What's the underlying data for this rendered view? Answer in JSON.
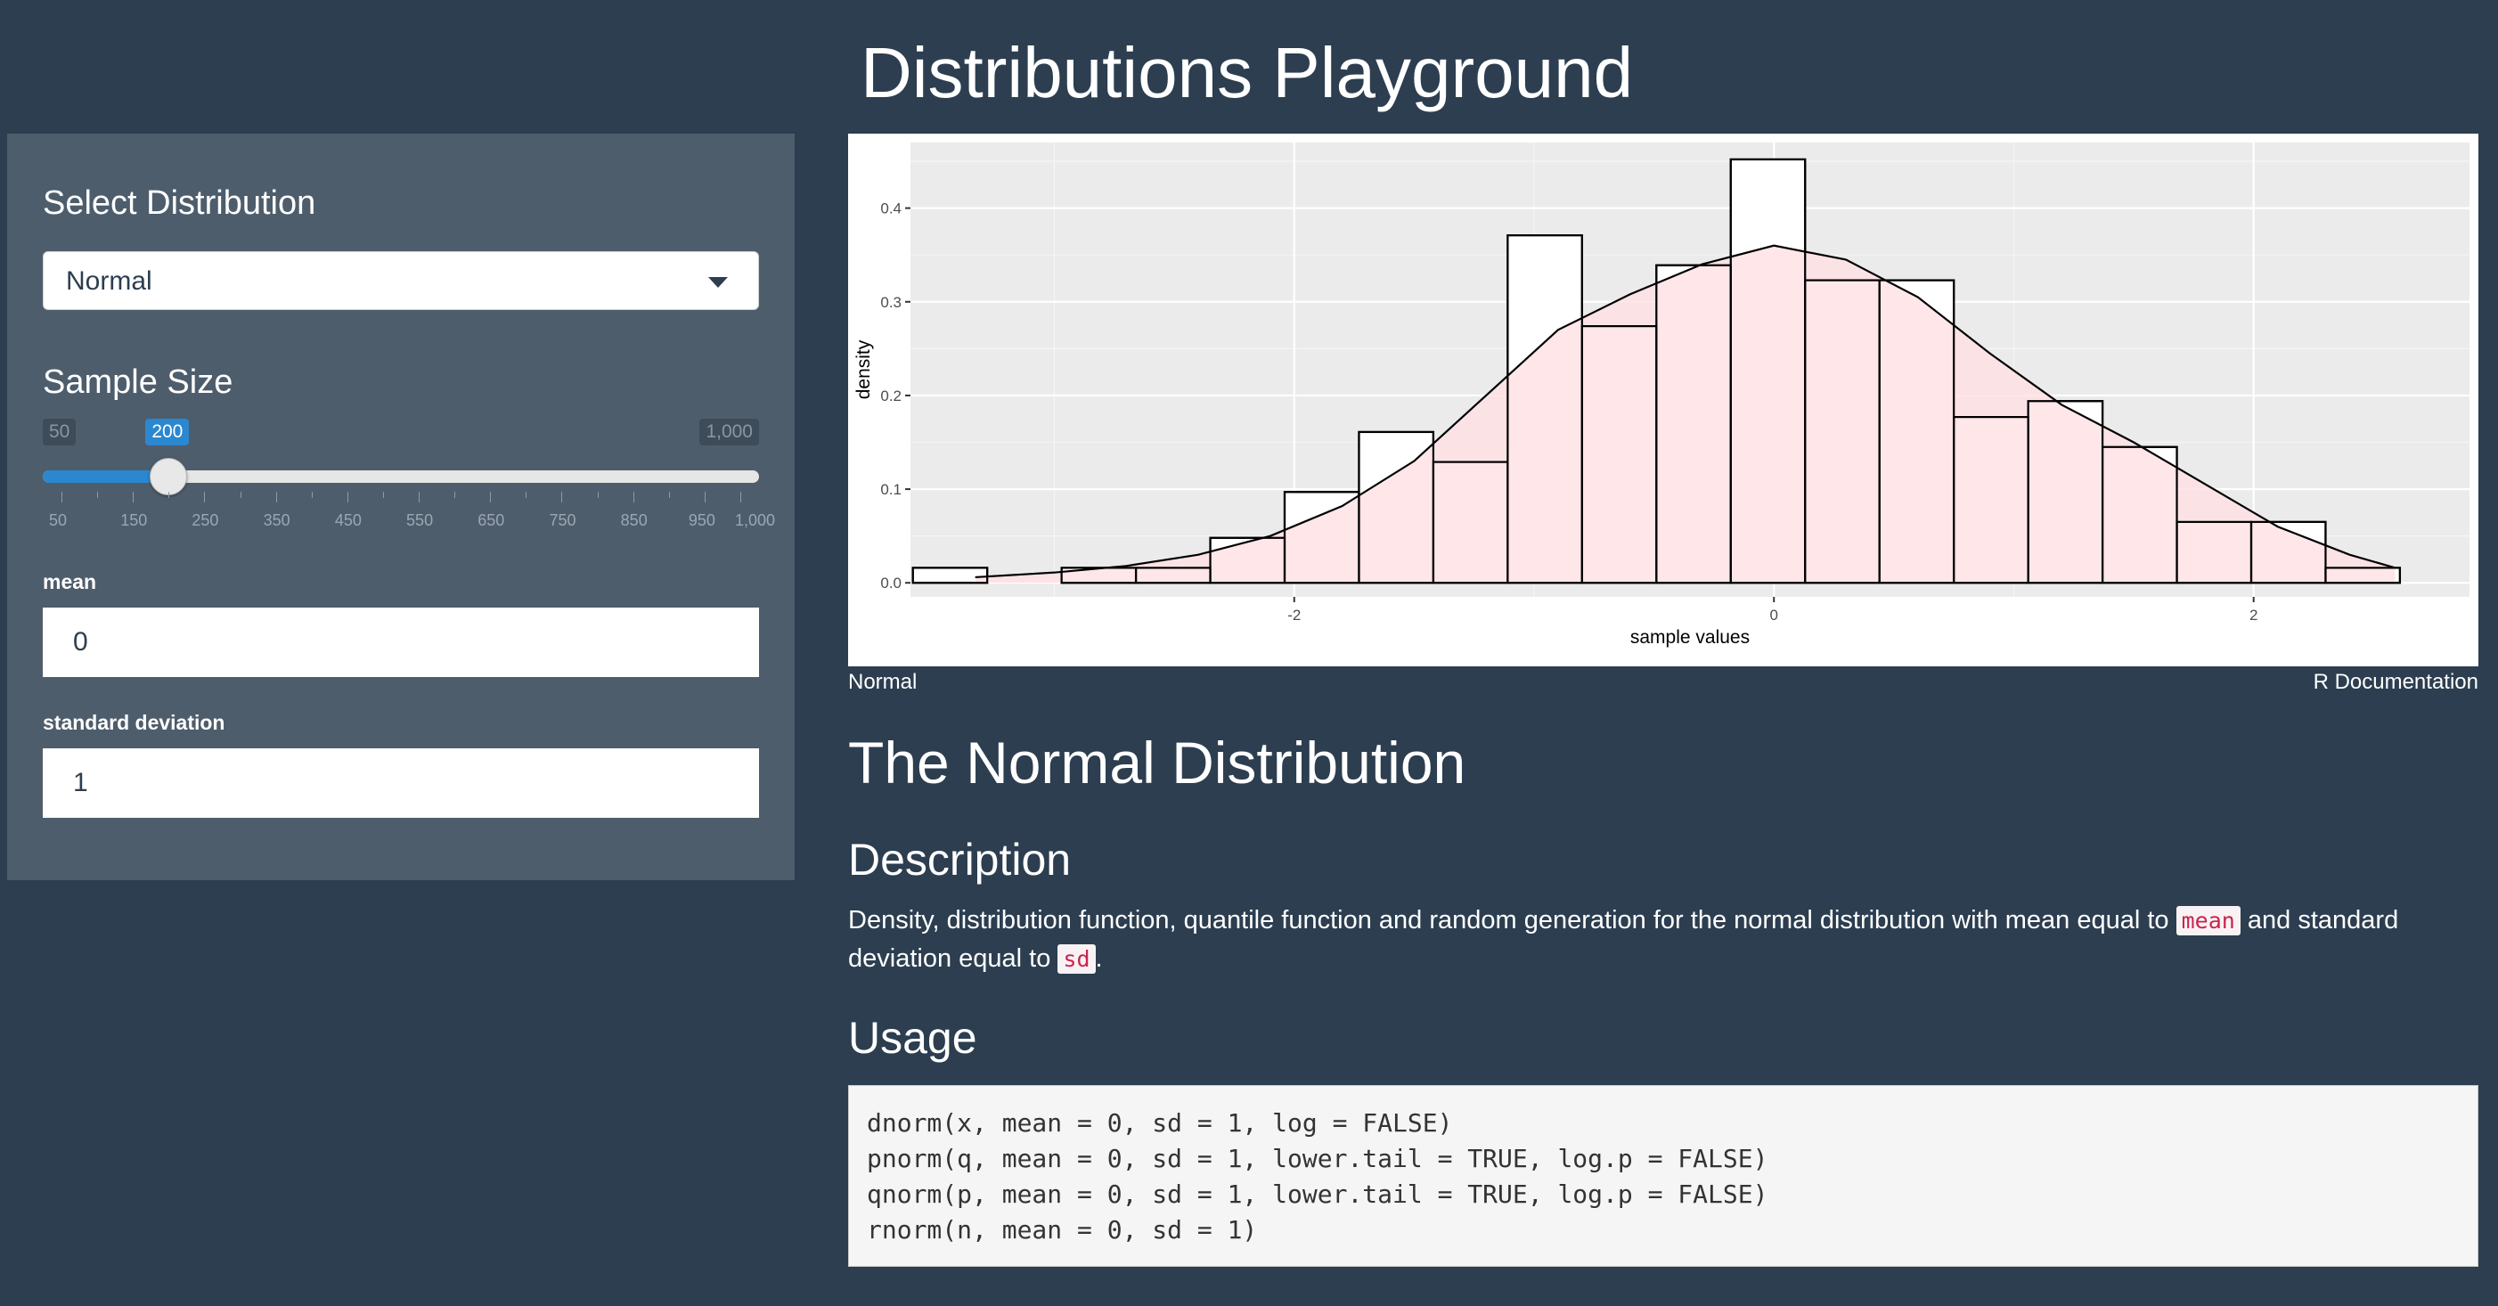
{
  "app": {
    "title": "Distributions Playground"
  },
  "sidebar": {
    "distribution_label": "Select Distribution",
    "distribution_selected": "Normal",
    "sample_size_label": "Sample Size",
    "slider": {
      "min": 50,
      "max": 1000,
      "value": 200,
      "min_label": "50",
      "max_label": "1,000",
      "value_label": "200",
      "tick_labels": [
        "50",
        "150",
        "250",
        "350",
        "450",
        "550",
        "650",
        "750",
        "850",
        "950",
        "1,000"
      ],
      "fill_color": "#2a87d0"
    },
    "mean_label": "mean",
    "mean_value": "0",
    "sd_label": "standard deviation",
    "sd_value": "1"
  },
  "chart_data": {
    "type": "bar",
    "subtype": "histogram-with-density",
    "xlabel": "sample values",
    "ylabel": "density",
    "xlim": [
      -3.6,
      2.9
    ],
    "ylim": [
      -0.015,
      0.47
    ],
    "x_ticks": [
      -2,
      0,
      2
    ],
    "x_tick_labels": [
      "-2",
      "0",
      "2"
    ],
    "y_ticks": [
      0.0,
      0.1,
      0.2,
      0.3,
      0.4
    ],
    "y_tick_labels": [
      "0.0",
      "0.1",
      "0.2",
      "0.3",
      "0.4"
    ],
    "bin_width": 0.31,
    "bin_left_edges": [
      -3.59,
      -3.28,
      -2.97,
      -2.66,
      -2.35,
      -2.04,
      -1.73,
      -1.42,
      -1.11,
      -0.8,
      -0.49,
      -0.18,
      0.13,
      0.44,
      0.75,
      1.06,
      1.37,
      1.68,
      1.99,
      2.3
    ],
    "bin_values": [
      0.016,
      0,
      0.016,
      0.016,
      0.048,
      0.097,
      0.161,
      0.129,
      0.371,
      0.274,
      0.339,
      0.452,
      0.323,
      0.323,
      0.177,
      0.194,
      0.145,
      0.065,
      0.065,
      0.016
    ],
    "density_x": [
      -3.33,
      -3.0,
      -2.7,
      -2.4,
      -2.1,
      -1.8,
      -1.5,
      -1.2,
      -0.9,
      -0.6,
      -0.3,
      0.0,
      0.3,
      0.6,
      0.9,
      1.2,
      1.5,
      1.8,
      2.1,
      2.4,
      2.59
    ],
    "density_y": [
      0.006,
      0.011,
      0.018,
      0.03,
      0.05,
      0.082,
      0.13,
      0.2,
      0.27,
      0.308,
      0.34,
      0.36,
      0.345,
      0.305,
      0.245,
      0.19,
      0.15,
      0.105,
      0.06,
      0.03,
      0.016
    ],
    "colors": {
      "panel": "#ebebeb",
      "grid": "#ffffff",
      "fill": "#ffe0e3",
      "bar_fill": "#ffffff",
      "bar_stroke": "#000000",
      "line": "#000000"
    },
    "grid": true
  },
  "doc": {
    "header_left": "Normal",
    "header_right": "R Documentation",
    "title": "The Normal Distribution",
    "description_heading": "Description",
    "description_parts": {
      "p1": "Density, distribution function, quantile function and random generation for the normal distribution with mean equal to ",
      "code1": "mean",
      "p2": " and standard deviation equal to ",
      "code2": "sd",
      "p3": "."
    },
    "usage_heading": "Usage",
    "usage_lines": [
      "dnorm(x, mean = 0, sd = 1, log = FALSE)",
      "pnorm(q, mean = 0, sd = 1, lower.tail = TRUE, log.p = FALSE)",
      "qnorm(p, mean = 0, sd = 1, lower.tail = TRUE, log.p = FALSE)",
      "rnorm(n, mean = 0, sd = 1)"
    ]
  }
}
